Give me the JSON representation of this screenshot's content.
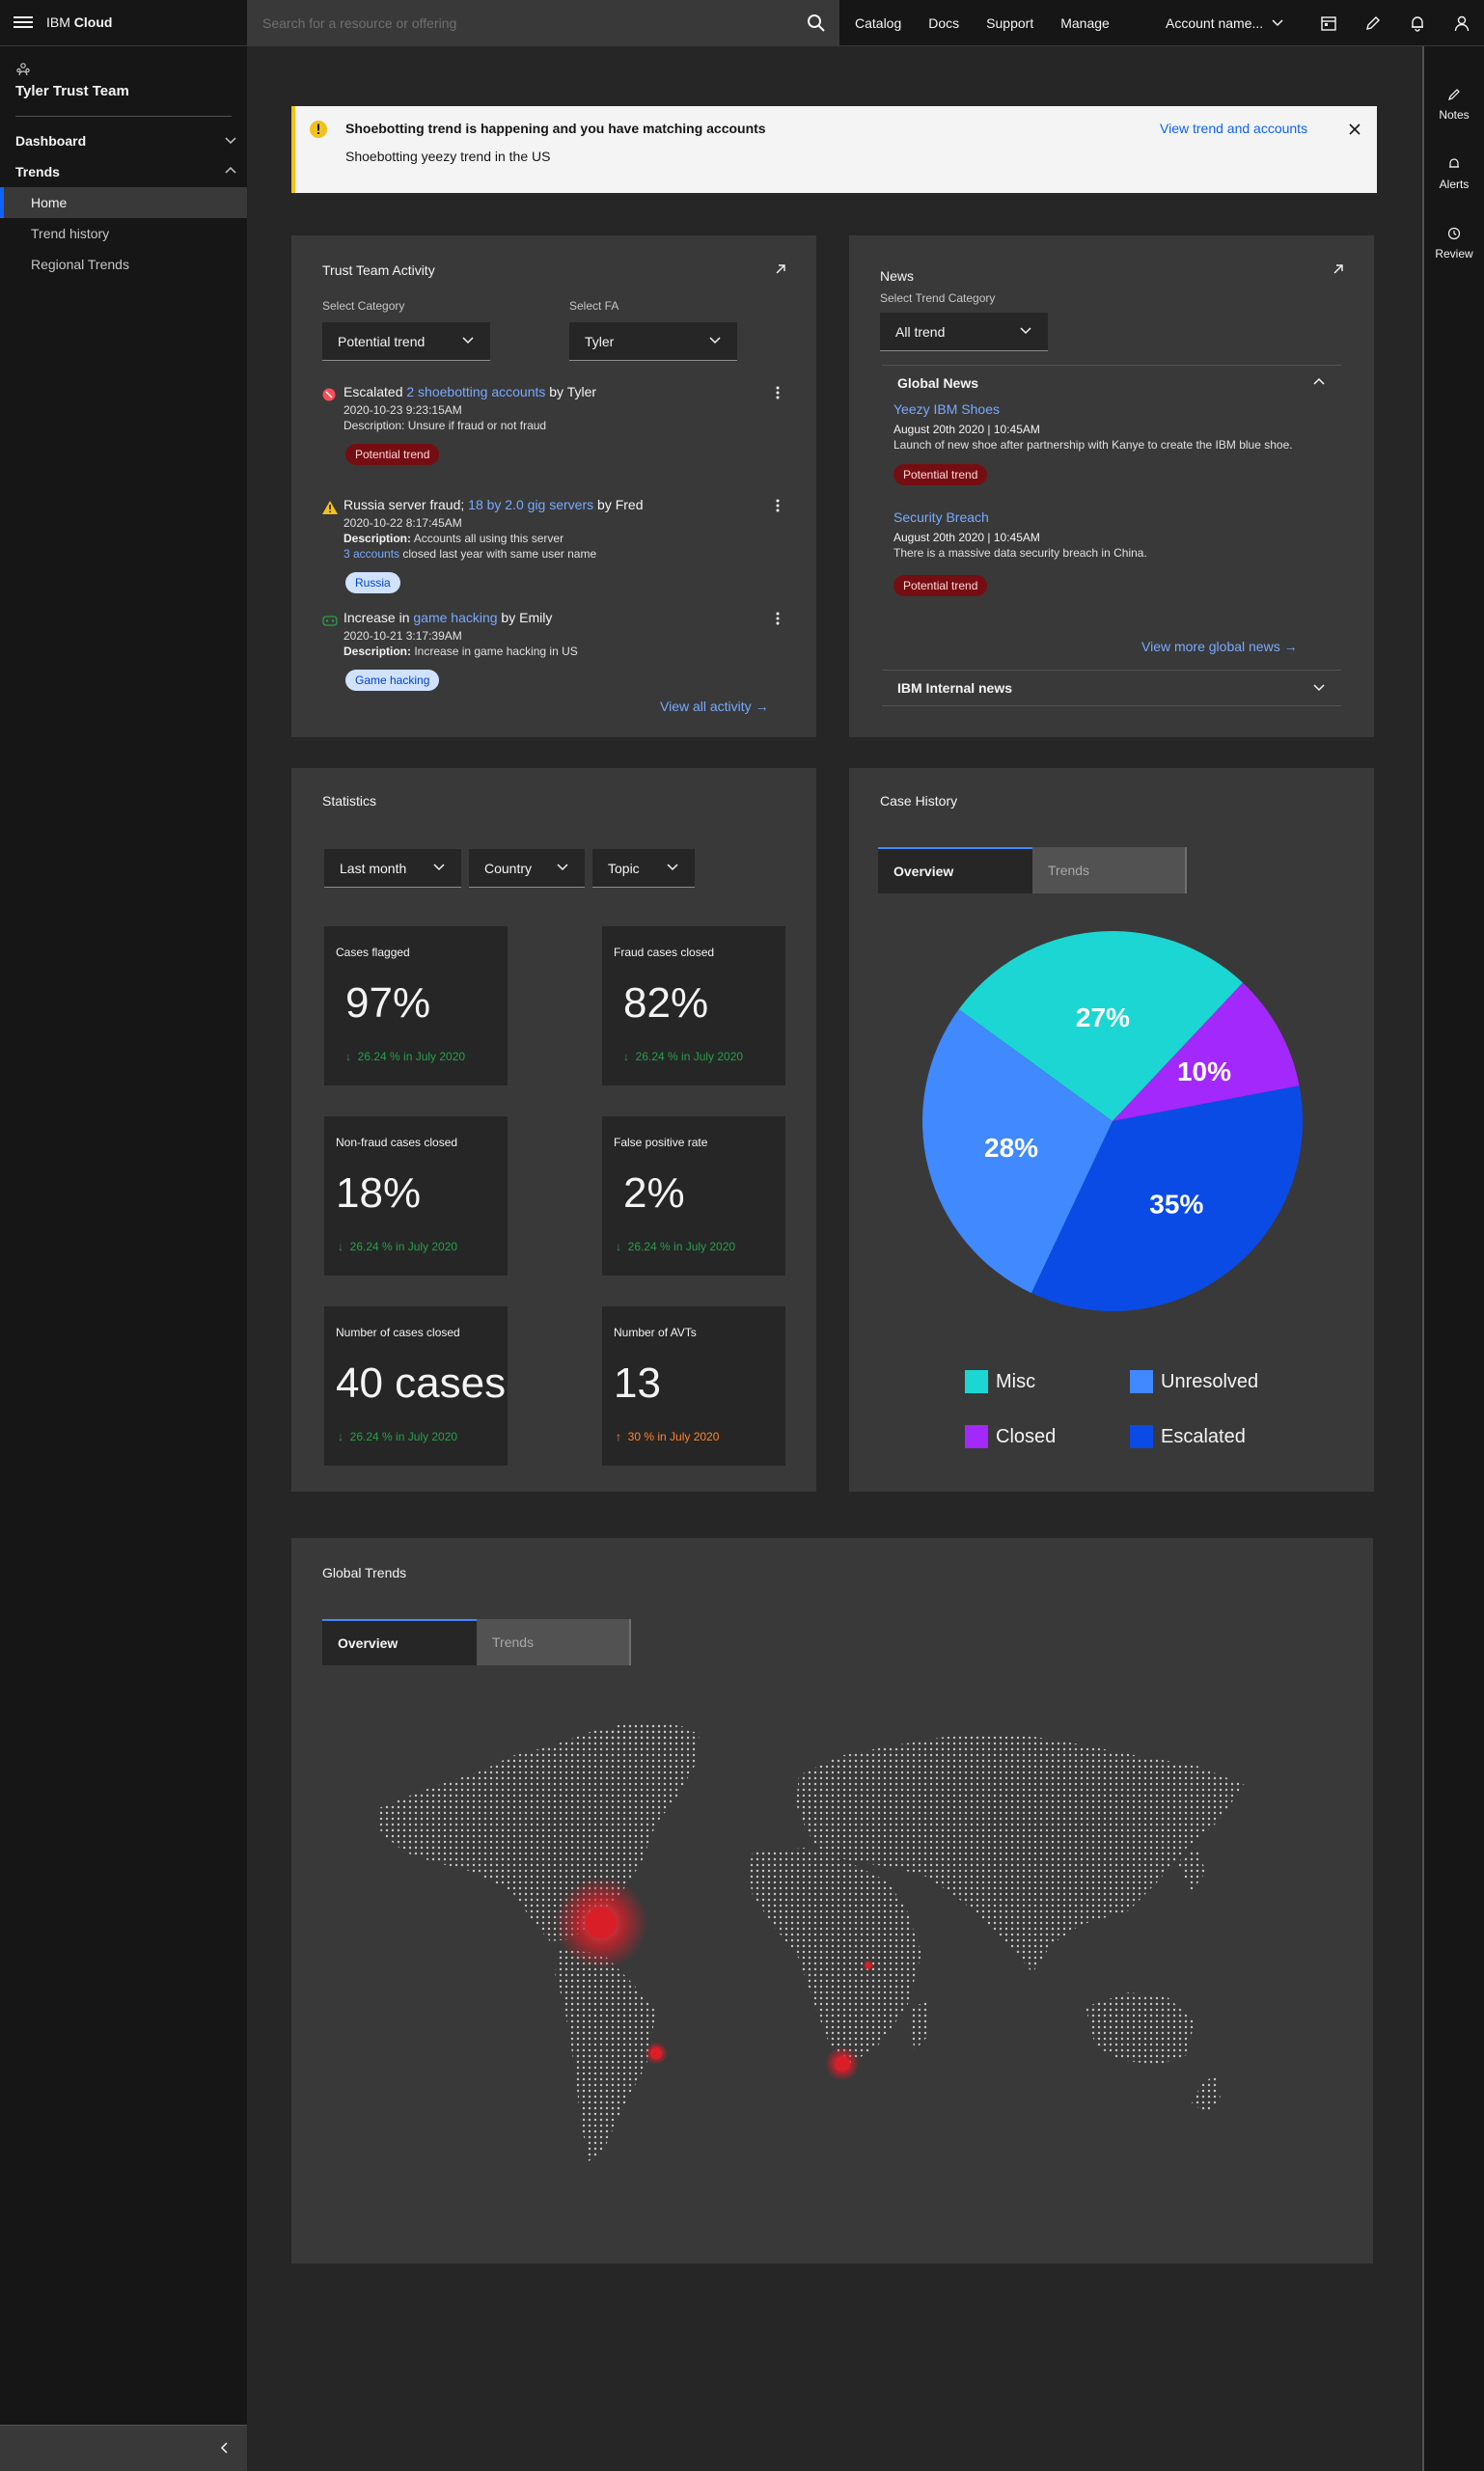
{
  "header": {
    "brand_prefix": "IBM",
    "brand_name": "Cloud",
    "search_placeholder": "Search for a resource or offering",
    "links": [
      "Catalog",
      "Docs",
      "Support",
      "Manage"
    ],
    "account": "Account name..."
  },
  "sidebar": {
    "team": "Tyler Trust Team",
    "dashboard": "Dashboard",
    "trends": "Trends",
    "items": [
      "Home",
      "Trend history",
      "Regional Trends"
    ]
  },
  "rightrail": [
    "Notes",
    "Alerts",
    "Review"
  ],
  "notification": {
    "title": "Shoebotting trend is happening and you have matching accounts",
    "subtitle": "Shoebotting yeezy trend in the US",
    "action": "View trend and accounts"
  },
  "activity": {
    "title": "Trust Team Activity",
    "cat_label": "Select Category",
    "cat_value": "Potential trend",
    "fa_label": "Select FA",
    "fa_value": "Tyler",
    "items": [
      {
        "pre": "Escalated ",
        "link": "2 shoebotting accounts",
        "post": " by Tyler",
        "date": "2020-10-23 9:23:15AM",
        "desc": "Description: Unsure if fraud or not fraud",
        "tag": "Potential trend"
      },
      {
        "pre": "Russia server fraud; ",
        "link": "18 by 2.0 gig servers",
        "post": " by Fred",
        "date": "2020-10-22 8:17:45AM",
        "desc_label": "Description:",
        "desc": " Accounts all using this server",
        "extra_link": "3 accounts",
        "extra": " closed last year with same user name",
        "tag": "Russia"
      },
      {
        "pre": "Increase in ",
        "link": "game hacking",
        "post": "  by Emily",
        "date": "2020-10-21 3:17:39AM",
        "desc_label": "Description:",
        "desc": " Increase in game hacking in US",
        "tag": "Game hacking"
      }
    ],
    "view_all": "View all activity"
  },
  "news": {
    "title": "News",
    "cat_label": "Select Trend Category",
    "cat_value": "All trend",
    "global": "Global News",
    "items": [
      {
        "title": "Yeezy IBM Shoes",
        "date": "August 20th 2020 | 10:45AM",
        "text": "Launch of new shoe after partnership with Kanye to create the IBM blue shoe.",
        "tag": "Potential trend"
      },
      {
        "title": "Security Breach",
        "date": "August 20th 2020 | 10:45AM",
        "text": "There is a massive data security breach in China.",
        "tag": "Potential trend"
      }
    ],
    "more": "View more global news",
    "internal": "IBM Internal news"
  },
  "statistics": {
    "title": "Statistics",
    "filters": [
      "Last month",
      "Country",
      "Topic"
    ],
    "tiles": [
      {
        "label": "Cases flagged",
        "value": "97%",
        "change": "26.24 % in July 2020",
        "dir": "down"
      },
      {
        "label": "Fraud cases closed",
        "value": "82%",
        "change": "26.24 % in July 2020",
        "dir": "down"
      },
      {
        "label": "Non-fraud cases closed",
        "value": "18%",
        "change": "26.24 % in July 2020",
        "dir": "down"
      },
      {
        "label": "False positive rate",
        "value": "2%",
        "change": "26.24 % in July 2020",
        "dir": "down"
      },
      {
        "label": "Number of cases closed",
        "value": "40 cases",
        "change": "26.24 % in July 2020",
        "dir": "down"
      },
      {
        "label": "Number of AVTs",
        "value": "13",
        "change": "30 % in July 2020",
        "dir": "up"
      }
    ]
  },
  "case_history": {
    "title": "Case History",
    "tabs": [
      "Overview",
      "Trends"
    ]
  },
  "chart_data": {
    "type": "pie",
    "categories": [
      "Misc",
      "Closed",
      "Escalated",
      "Unresolved"
    ],
    "values": [
      27,
      10,
      35,
      28
    ],
    "labels": [
      "27%",
      "10%",
      "35%",
      "28%"
    ],
    "colors": {
      "Misc": "#1bd6d2",
      "Closed": "#a228fc",
      "Escalated": "#0a4be6",
      "Unresolved": "#4089ff"
    },
    "legend": [
      "Misc",
      "Unresolved",
      "Closed",
      "Escalated"
    ],
    "legend_placement": "bottom"
  },
  "global_trends": {
    "title": "Global Trends",
    "tabs": [
      "Overview",
      "Trends"
    ]
  },
  "colors": {
    "accent": "#0f62fe",
    "link": "#78a9ff",
    "warning": "#f1c21b",
    "error": "#fa4d56",
    "success": "#24a148"
  }
}
